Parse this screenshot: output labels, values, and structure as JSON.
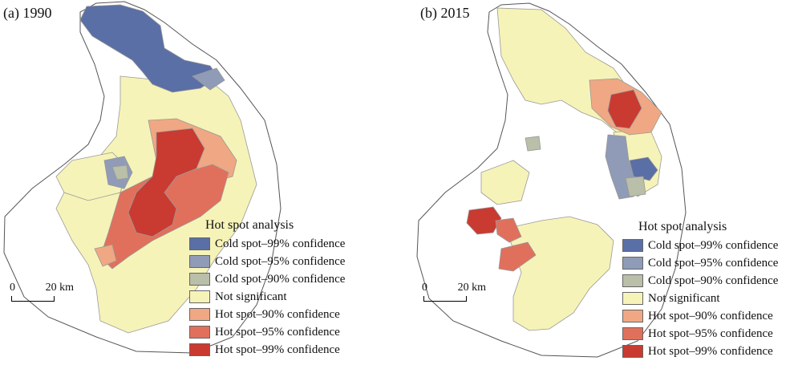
{
  "panels": [
    {
      "title": "(a) 1990"
    },
    {
      "title": "(b) 2015"
    }
  ],
  "legend": {
    "title": "Hot spot analysis",
    "items": [
      {
        "label": "Cold spot–99% confidence",
        "color": "#5a6fa5"
      },
      {
        "label": "Cold spot–95% confidence",
        "color": "#8f9bb7"
      },
      {
        "label": "Cold spot–90% confidence",
        "color": "#b9bfa8"
      },
      {
        "label": "Not significant",
        "color": "#f6f3b8"
      },
      {
        "label": "Hot spot–90% confidence",
        "color": "#efa883"
      },
      {
        "label": "Hot spot–95% confidence",
        "color": "#e0705c"
      },
      {
        "label": "Hot spot–99% confidence",
        "color": "#c93a31"
      }
    ]
  },
  "scale": {
    "start_label": "0",
    "end_label": "20 km"
  },
  "colors": {
    "outline": "#555555",
    "region_border": "#999999"
  }
}
